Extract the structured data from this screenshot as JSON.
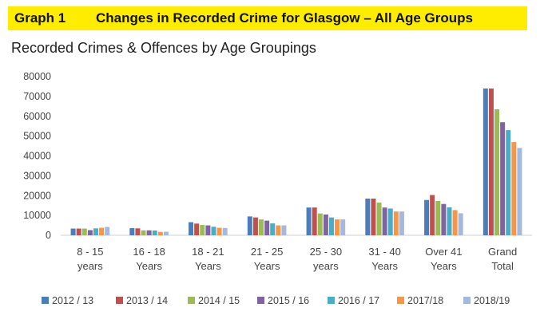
{
  "header": {
    "graph_number": "Graph 1",
    "title": "Changes in Recorded Crime for Glasgow – All Age Groups"
  },
  "chart_data": {
    "type": "bar",
    "title": "Recorded Crimes & Offences by Age Groupings",
    "xlabel": "",
    "ylabel": "",
    "ylim": [
      0,
      80000
    ],
    "yticks": [
      "0",
      "10000",
      "20000",
      "30000",
      "40000",
      "50000",
      "60000",
      "70000",
      "80000"
    ],
    "grid": false,
    "legend_position": "bottom",
    "categories": [
      [
        "8 - 15",
        "years"
      ],
      [
        "16 - 18",
        "Years"
      ],
      [
        "18 - 21",
        "Years"
      ],
      [
        "21 - 25",
        "Years"
      ],
      [
        "25 - 30",
        "years"
      ],
      [
        "31 - 40",
        "Years"
      ],
      [
        "Over 41",
        "Years"
      ],
      [
        "Grand",
        "Total"
      ]
    ],
    "series": [
      {
        "name": "2012 / 13",
        "color": "#4a7ebb",
        "values": [
          3400,
          3600,
          6600,
          9500,
          14000,
          18500,
          17800,
          74000
        ]
      },
      {
        "name": "2013 / 14",
        "color": "#c0504d",
        "values": [
          3400,
          3500,
          5900,
          9000,
          14000,
          18500,
          20300,
          74000
        ]
      },
      {
        "name": "2014 / 15",
        "color": "#9bbb59",
        "values": [
          3400,
          2500,
          5200,
          8000,
          11000,
          16500,
          17300,
          63500
        ]
      },
      {
        "name": "2015 / 16",
        "color": "#8064a2",
        "values": [
          2600,
          2500,
          5000,
          7400,
          10500,
          14000,
          15800,
          57000
        ]
      },
      {
        "name": "2016 / 17",
        "color": "#4bacc6",
        "values": [
          3500,
          2400,
          4300,
          6000,
          9000,
          13500,
          14100,
          53000
        ]
      },
      {
        "name": "2017/18",
        "color": "#f79646",
        "values": [
          3800,
          1700,
          3800,
          5000,
          8000,
          12000,
          12700,
          47000
        ]
      },
      {
        "name": "2018/19",
        "color": "#a5b9de",
        "values": [
          4200,
          1800,
          3700,
          5000,
          8000,
          12000,
          11100,
          44000
        ]
      }
    ]
  }
}
